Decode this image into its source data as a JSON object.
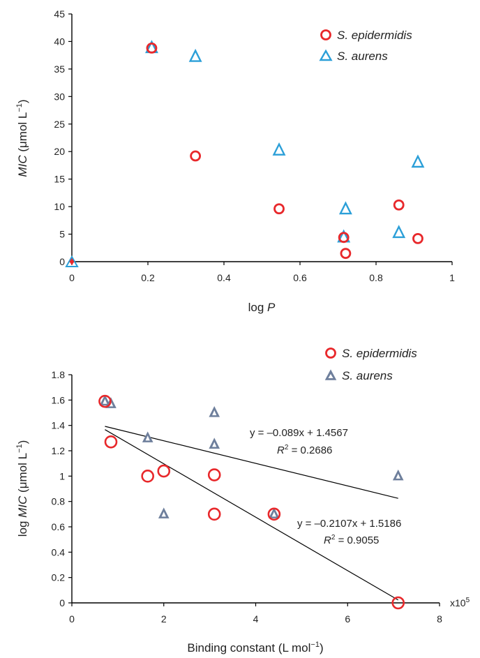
{
  "colors": {
    "epidermidis": "#e8282b",
    "aurens_top": "#2b9fd8",
    "aurens_bottom": "#6e7f9c",
    "axis": "#000000"
  },
  "chart_data": [
    {
      "type": "scatter",
      "title": "",
      "xlabel_prefix": "log ",
      "xlabel_italic": "P",
      "ylabel_italic": "MIC",
      "ylabel_rest": " (μmol L",
      "ylabel_sup": "−1",
      "ylabel_close": ")",
      "xlim": [
        0,
        1
      ],
      "ylim": [
        0,
        45
      ],
      "xticks": [
        "0",
        "0.2",
        "0.4",
        "0.6",
        "0.8",
        "1"
      ],
      "yticks": [
        "0",
        "5",
        "10",
        "15",
        "20",
        "25",
        "30",
        "35",
        "40",
        "45"
      ],
      "legend_position": "top-right",
      "series": [
        {
          "name": "S. epidermidis",
          "marker": "circle",
          "points": [
            [
              0.21,
              38.8
            ],
            [
              0.325,
              19.2
            ],
            [
              0.545,
              9.6
            ],
            [
              0.715,
              4.4
            ],
            [
              0.72,
              1.5
            ],
            [
              0.86,
              10.3
            ],
            [
              0.91,
              4.2
            ]
          ]
        },
        {
          "name": "S. aurens",
          "marker": "triangle",
          "points": [
            [
              0.21,
              38.8
            ],
            [
              0.325,
              37.2
            ],
            [
              0.545,
              20.2
            ],
            [
              0.715,
              4.4
            ],
            [
              0.72,
              9.5
            ],
            [
              0.86,
              5.2
            ],
            [
              0.91,
              18.0
            ]
          ]
        }
      ],
      "extra_points": [
        {
          "series": "S. aurens",
          "x": 0,
          "y": 0
        },
        {
          "series": "S. epidermidis",
          "x": 0,
          "y": 0
        }
      ]
    },
    {
      "type": "scatter",
      "title": "",
      "xlabel": "Binding constant (L mol",
      "xlabel_sup": "−1",
      "xlabel_close": ")",
      "xscale_note": "x10",
      "xscale_sup": "5",
      "ylabel_prefix": "log ",
      "ylabel_italic": "MIC",
      "ylabel_rest": " (μmol L",
      "ylabel_sup": "−1",
      "ylabel_close": ")",
      "xlim": [
        0,
        8
      ],
      "ylim": [
        0,
        1.8
      ],
      "xticks": [
        "0",
        "2",
        "4",
        "6",
        "8"
      ],
      "yticks": [
        "0",
        "0.2",
        "0.4",
        "0.6",
        "0.8",
        "1",
        "1.2",
        "1.4",
        "1.6",
        "1.8"
      ],
      "legend_position": "top-right",
      "series": [
        {
          "name": "S. epidermidis",
          "marker": "circle",
          "points": [
            [
              0.72,
              1.59
            ],
            [
              0.85,
              1.27
            ],
            [
              1.65,
              1.0
            ],
            [
              2.0,
              1.04
            ],
            [
              3.1,
              1.01
            ],
            [
              3.1,
              0.7
            ],
            [
              4.4,
              0.7
            ],
            [
              7.1,
              0.0
            ]
          ]
        },
        {
          "name": "S. aurens",
          "marker": "triangle",
          "points": [
            [
              0.72,
              1.59
            ],
            [
              0.85,
              1.57
            ],
            [
              1.65,
              1.3
            ],
            [
              2.0,
              0.7
            ],
            [
              3.1,
              1.5
            ],
            [
              3.1,
              1.25
            ],
            [
              4.4,
              0.7
            ],
            [
              7.1,
              1.0
            ]
          ]
        }
      ],
      "trendlines": [
        {
          "series": "S. aurens",
          "slope": -0.089,
          "intercept": 1.4567,
          "x_range": [
            0.72,
            7.1
          ]
        },
        {
          "series": "S. epidermidis",
          "slope": -0.2107,
          "intercept": 1.5186,
          "x_range": [
            0.72,
            7.1
          ]
        }
      ],
      "annotations": [
        {
          "eq": "y = –0.089x + 1.4567",
          "r_label": "R",
          "r_sup": "2",
          "r_value": " = 0.2686"
        },
        {
          "eq": "y = –0.2107x + 1.5186",
          "r_label": "R",
          "r_sup": "2",
          "r_value": " = 0.9055"
        }
      ]
    }
  ]
}
